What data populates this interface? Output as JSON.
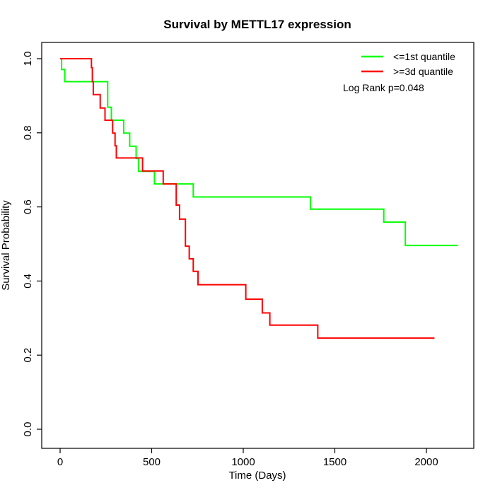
{
  "title": "Survival by METTL17 expression",
  "annotation": "Log Rank p=0.048",
  "chart_data": {
    "type": "line",
    "subtype": "kaplan-meier-step",
    "title": "Survival by METTL17 expression",
    "xlabel": "Time (Days)",
    "ylabel": "Survival Probability",
    "xlim": [
      0,
      2250
    ],
    "ylim": [
      0.0,
      1.0
    ],
    "x_ticks": [
      0,
      500,
      1000,
      1500,
      2000
    ],
    "x_tick_labels": [
      "0",
      "500",
      "1000",
      "1500",
      "2000"
    ],
    "y_ticks": [
      0.0,
      0.2,
      0.4,
      0.6,
      0.8,
      1.0
    ],
    "y_tick_labels": [
      "0.0",
      "0.2",
      "0.4",
      "0.6",
      "0.8",
      "1.0"
    ],
    "grid": false,
    "legend_position": "top-right",
    "annotation": "Log Rank p=0.048",
    "series": [
      {
        "name": "<=1st quantile",
        "color": "#00ff00",
        "points": [
          [
            0,
            1.0
          ],
          [
            8,
            0.971
          ],
          [
            26,
            0.938
          ],
          [
            260,
            0.869
          ],
          [
            280,
            0.834
          ],
          [
            347,
            0.799
          ],
          [
            380,
            0.764
          ],
          [
            415,
            0.731
          ],
          [
            428,
            0.696
          ],
          [
            515,
            0.662
          ],
          [
            727,
            0.627
          ],
          [
            1367,
            0.594
          ],
          [
            1767,
            0.559
          ],
          [
            1885,
            0.496
          ],
          [
            2172,
            0.496
          ]
        ]
      },
      {
        "name": ">=3d quantile",
        "color": "#ff0000",
        "points": [
          [
            0,
            1.0
          ],
          [
            171,
            0.976
          ],
          [
            176,
            0.938
          ],
          [
            181,
            0.903
          ],
          [
            219,
            0.867
          ],
          [
            245,
            0.834
          ],
          [
            287,
            0.799
          ],
          [
            300,
            0.765
          ],
          [
            307,
            0.732
          ],
          [
            450,
            0.697
          ],
          [
            563,
            0.662
          ],
          [
            634,
            0.605
          ],
          [
            652,
            0.567
          ],
          [
            684,
            0.494
          ],
          [
            705,
            0.46
          ],
          [
            727,
            0.426
          ],
          [
            753,
            0.39
          ],
          [
            1014,
            0.351
          ],
          [
            1104,
            0.314
          ],
          [
            1145,
            0.281
          ],
          [
            1407,
            0.246
          ],
          [
            2044,
            0.246
          ]
        ]
      }
    ]
  }
}
